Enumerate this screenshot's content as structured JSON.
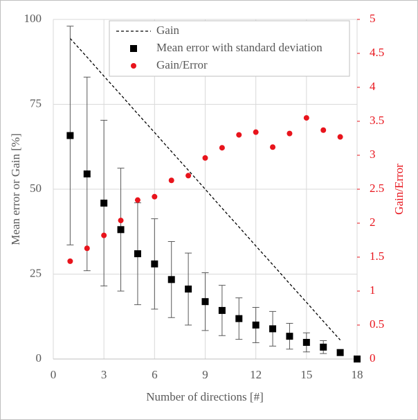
{
  "chart_data": {
    "type": "scatter",
    "x_label": "Number of directions [#]",
    "y_label": "Mean error or Gain [%]",
    "y2_label": "Gain/Error",
    "xlim": [
      0,
      18
    ],
    "xticks": [
      0,
      3,
      6,
      9,
      12,
      15,
      18
    ],
    "ylim": [
      0,
      100
    ],
    "yticks": [
      0,
      25,
      50,
      75,
      100
    ],
    "y2lim": [
      0,
      5
    ],
    "y2ticks": [
      0,
      0.5,
      1,
      1.5,
      2,
      2.5,
      3,
      3.5,
      4,
      4.5,
      5
    ],
    "grid": true,
    "legend": "top",
    "series": [
      {
        "name": "Gain",
        "kind": "dashed-line",
        "color": "#000000",
        "x": [
          1,
          2,
          3,
          4,
          5,
          6,
          7,
          8,
          9,
          10,
          11,
          12,
          13,
          14,
          15,
          16,
          17
        ],
        "values": [
          94.4,
          88.9,
          83.3,
          77.8,
          72.2,
          66.7,
          61.1,
          55.6,
          50,
          44.4,
          38.9,
          33.3,
          27.8,
          22.2,
          16.7,
          11.1,
          5.6
        ]
      },
      {
        "name": "Mean error with standard deviation",
        "kind": "square-errorbar",
        "color": "#000000",
        "x": [
          1,
          2,
          3,
          4,
          5,
          6,
          7,
          8,
          9,
          10,
          11,
          12,
          13,
          14,
          15,
          16,
          17,
          18
        ],
        "values": [
          65.8,
          54.5,
          45.9,
          38.1,
          31,
          28,
          23.4,
          20.6,
          16.9,
          14.3,
          11.9,
          10,
          8.9,
          6.7,
          4.9,
          3.5,
          1.9,
          0
        ],
        "errors": [
          32.2,
          28.5,
          24.4,
          18.1,
          15,
          13.3,
          11.2,
          10.6,
          8.5,
          7.4,
          6.1,
          5.2,
          5.1,
          3.8,
          2.8,
          1.9,
          0.8,
          0
        ]
      },
      {
        "name": "Gain/Error",
        "kind": "dot",
        "color": "#e8141c",
        "axis": "y2",
        "x": [
          1,
          2,
          3,
          4,
          5,
          6,
          7,
          8,
          9,
          10,
          11,
          12,
          13,
          14,
          15,
          16,
          17
        ],
        "values": [
          1.44,
          1.63,
          1.82,
          2.04,
          2.34,
          2.39,
          2.63,
          2.7,
          2.96,
          3.11,
          3.3,
          3.34,
          3.12,
          3.32,
          3.55,
          3.37,
          3.27
        ]
      }
    ]
  }
}
